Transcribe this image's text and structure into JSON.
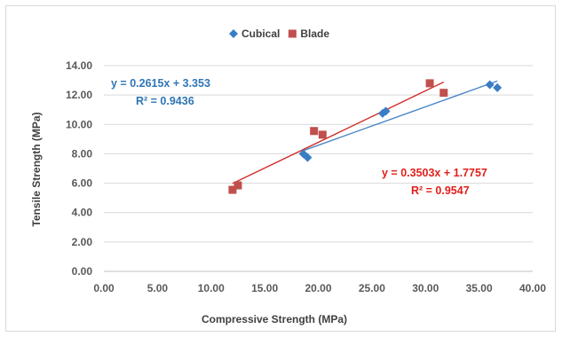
{
  "chart_data": {
    "type": "scatter",
    "title": "",
    "xlabel": "Compressive Strength (MPa)",
    "ylabel": "Tensile Strength (MPa)",
    "xlim": [
      0,
      40
    ],
    "ylim": [
      0,
      14
    ],
    "x_ticks": [
      "0.00",
      "5.00",
      "10.00",
      "15.00",
      "20.00",
      "25.00",
      "30.00",
      "35.00",
      "40.00"
    ],
    "y_ticks": [
      "0.00",
      "2.00",
      "4.00",
      "6.00",
      "8.00",
      "10.00",
      "12.00",
      "14.00"
    ],
    "grid": "horizontal",
    "legend_position": "top",
    "series": [
      {
        "name": "Cubical",
        "marker": "diamond",
        "color": "#3a7dc4",
        "points": [
          [
            18.6,
            8.0
          ],
          [
            19.0,
            7.75
          ],
          [
            26.0,
            10.75
          ],
          [
            26.3,
            10.9
          ],
          [
            36.0,
            12.7
          ],
          [
            36.7,
            12.5
          ]
        ],
        "trendline": {
          "slope": 0.2615,
          "intercept": 3.353,
          "x_range": [
            18.6,
            36.7
          ],
          "equation": "y = 0.2615x + 3.353",
          "r2": "R² = 0.9436",
          "label_color": "#2e75b6"
        }
      },
      {
        "name": "Blade",
        "marker": "square",
        "color": "#c0504d",
        "points": [
          [
            12.0,
            5.55
          ],
          [
            12.5,
            5.85
          ],
          [
            19.6,
            9.55
          ],
          [
            20.4,
            9.3
          ],
          [
            30.4,
            12.8
          ],
          [
            31.7,
            12.15
          ]
        ],
        "trendline": {
          "slope": 0.3503,
          "intercept": 1.7757,
          "x_range": [
            12.0,
            31.7
          ],
          "equation": "y = 0.3503x + 1.7757",
          "r2": "R² = 0.9547",
          "label_color": "#e0201b"
        }
      }
    ]
  }
}
